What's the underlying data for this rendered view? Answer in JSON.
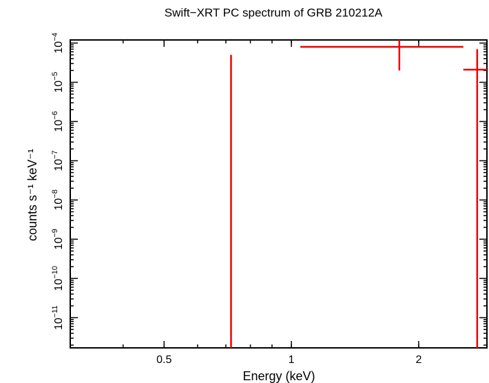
{
  "chart_data": {
    "type": "scatter",
    "title": "Swift−XRT PC spectrum of GRB 210212A",
    "xlabel": "Energy (keV)",
    "ylabel": "counts s⁻¹ keV⁻¹",
    "x_scale": "log",
    "y_scale": "log",
    "xlim": [
      0.3,
      2.9
    ],
    "ylim": [
      1.7e-12,
      0.00012
    ],
    "x_ticks": [
      {
        "value": 0.5,
        "label": "0.5"
      },
      {
        "value": 1,
        "label": "1"
      },
      {
        "value": 2,
        "label": "2"
      }
    ],
    "y_ticks": [
      {
        "value": 1e-11,
        "base": "10",
        "exp": "−11"
      },
      {
        "value": 1e-10,
        "base": "10",
        "exp": "−10"
      },
      {
        "value": 1e-09,
        "base": "10",
        "exp": "−9"
      },
      {
        "value": 1e-08,
        "base": "10",
        "exp": "−8"
      },
      {
        "value": 1e-07,
        "base": "10",
        "exp": "−7"
      },
      {
        "value": 1e-06,
        "base": "10",
        "exp": "−6"
      },
      {
        "value": 1e-05,
        "base": "10",
        "exp": "−5"
      },
      {
        "value": 0.0001,
        "base": "10",
        "exp": "−4"
      }
    ],
    "grid": false,
    "series": [
      {
        "color": "#ee0000",
        "points": [
          {
            "x": 0.72,
            "x_lo": 0.72,
            "x_hi": 0.72,
            "y": 1e-05,
            "y_lo": 1.7e-12,
            "y_hi": 5e-05
          },
          {
            "x": 1.8,
            "x_lo": 1.05,
            "x_hi": 2.55,
            "y": 8e-05,
            "y_lo": 2e-05,
            "y_hi": 0.00012
          },
          {
            "x": 2.75,
            "x_lo": 2.55,
            "x_hi": 2.9,
            "y": 2.1e-05,
            "y_lo": 1.7e-12,
            "y_hi": 7e-05
          }
        ]
      }
    ]
  }
}
